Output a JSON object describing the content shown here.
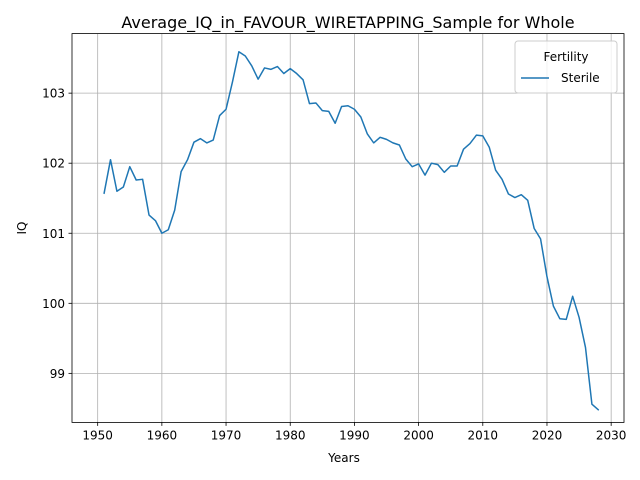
{
  "chart_data": {
    "type": "line",
    "title": "Average_IQ_in_FAVOUR_WIRETAPPING_Sample for Whole",
    "xlabel": "Years",
    "ylabel": "IQ",
    "xlim": [
      1946,
      2032
    ],
    "ylim": [
      98.3,
      103.85
    ],
    "xticks": [
      1950,
      1960,
      1970,
      1980,
      1990,
      2000,
      2010,
      2020,
      2030
    ],
    "yticks": [
      99,
      100,
      101,
      102,
      103
    ],
    "grid": true,
    "legend": {
      "title": "Fertility",
      "placement": "top-right"
    },
    "series": [
      {
        "name": "Sterile",
        "color": "#1f77b4",
        "x": [
          1951,
          1952,
          1953,
          1954,
          1955,
          1956,
          1957,
          1958,
          1959,
          1960,
          1961,
          1962,
          1963,
          1964,
          1965,
          1966,
          1967,
          1968,
          1969,
          1970,
          1971,
          1972,
          1973,
          1974,
          1975,
          1976,
          1977,
          1978,
          1979,
          1980,
          1981,
          1982,
          1983,
          1984,
          1985,
          1986,
          1987,
          1988,
          1989,
          1990,
          1991,
          1992,
          1993,
          1994,
          1995,
          1996,
          1997,
          1998,
          1999,
          2000,
          2001,
          2002,
          2003,
          2004,
          2005,
          2006,
          2007,
          2008,
          2009,
          2010,
          2011,
          2012,
          2013,
          2014,
          2015,
          2016,
          2017,
          2018,
          2019,
          2020,
          2021,
          2022,
          2023,
          2024,
          2025,
          2026,
          2027,
          2028
        ],
        "y": [
          101.57,
          102.05,
          101.6,
          101.66,
          101.95,
          101.76,
          101.77,
          101.26,
          101.18,
          101.0,
          101.05,
          101.33,
          101.88,
          102.05,
          102.3,
          102.35,
          102.29,
          102.33,
          102.68,
          102.77,
          103.16,
          103.59,
          103.53,
          103.39,
          103.2,
          103.36,
          103.34,
          103.38,
          103.28,
          103.35,
          103.28,
          103.19,
          102.85,
          102.86,
          102.75,
          102.74,
          102.57,
          102.81,
          102.82,
          102.77,
          102.66,
          102.42,
          102.29,
          102.37,
          102.34,
          102.29,
          102.26,
          102.06,
          101.95,
          101.99,
          101.83,
          102.0,
          101.98,
          101.87,
          101.96,
          101.96,
          102.2,
          102.28,
          102.4,
          102.39,
          102.23,
          101.9,
          101.77,
          101.56,
          101.51,
          101.55,
          101.47,
          101.07,
          100.92,
          100.38,
          99.96,
          99.78,
          99.77,
          100.1,
          99.8,
          99.37,
          98.56,
          98.48
        ]
      }
    ]
  }
}
